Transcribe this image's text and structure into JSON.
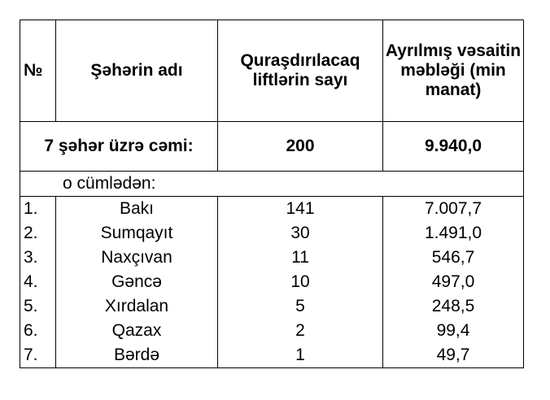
{
  "table": {
    "headers": {
      "no": "№",
      "city": "Şəhərin adı",
      "lifts": "Quraşdırılacaq liftlərin sayı",
      "funds": "Ayrılmış vəsaitin məbləği (min manat)"
    },
    "total": {
      "label": "7 şəhər üzrə cəmi:",
      "lifts": "200",
      "funds": "9.940,0"
    },
    "subheading": "o cümlədən:",
    "rows": [
      {
        "no": "1.",
        "city": "Bakı",
        "lifts": "141",
        "funds": "7.007,7"
      },
      {
        "no": "2.",
        "city": "Sumqayıt",
        "lifts": "30",
        "funds": "1.491,0"
      },
      {
        "no": "3.",
        "city": "Naxçıvan",
        "lifts": "11",
        "funds": "546,7"
      },
      {
        "no": "4.",
        "city": "Gəncə",
        "lifts": "10",
        "funds": "497,0"
      },
      {
        "no": "5.",
        "city": "Xırdalan",
        "lifts": "5",
        "funds": "248,5"
      },
      {
        "no": "6.",
        "city": "Qazax",
        "lifts": "2",
        "funds": "99,4"
      },
      {
        "no": "7.",
        "city": "Bərdə",
        "lifts": "1",
        "funds": "49,7"
      }
    ]
  }
}
